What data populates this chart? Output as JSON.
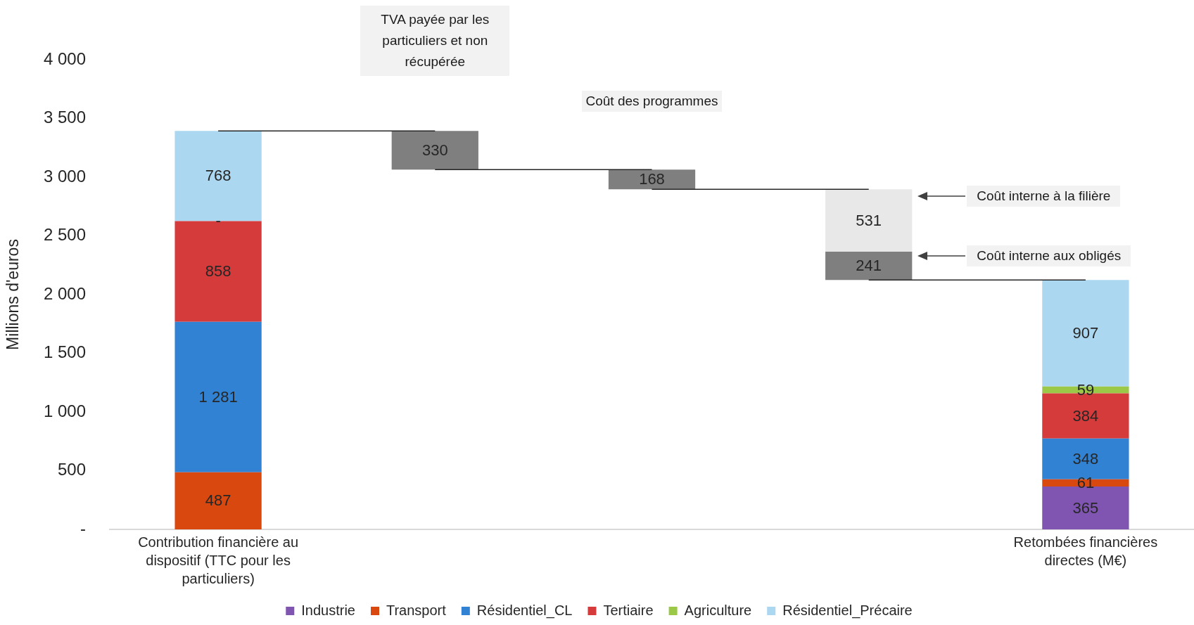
{
  "chart_data": {
    "type": "bar",
    "ylabel": "Millions d'euros",
    "categories": [
      "Contribution financière au dispositif (TTC pour les particuliers)",
      null,
      null,
      null,
      "Retombées financières directes (M€)"
    ],
    "stacked": true,
    "series": [
      {
        "name": "Industrie",
        "color": "#7f55b1",
        "values": [
          null,
          null,
          null,
          null,
          365
        ],
        "value_labels": [
          null,
          null,
          null,
          null,
          "365"
        ]
      },
      {
        "name": "Transport",
        "color": "#d9480f",
        "values": [
          487,
          null,
          null,
          null,
          61
        ],
        "value_labels": [
          "487",
          null,
          null,
          null,
          "61"
        ]
      },
      {
        "name": "Résidentiel_CL",
        "color": "#3282d3",
        "values": [
          1281,
          null,
          null,
          null,
          348
        ],
        "value_labels": [
          "1 281",
          null,
          null,
          null,
          "348"
        ]
      },
      {
        "name": "Tertiaire",
        "color": "#d63b3b",
        "values": [
          858,
          null,
          null,
          null,
          384
        ],
        "value_labels": [
          "858",
          null,
          null,
          null,
          "384"
        ]
      },
      {
        "name": "Agriculture",
        "color": "#9bc846",
        "values": [
          0,
          null,
          null,
          null,
          59
        ],
        "value_labels": [
          null,
          null,
          null,
          null,
          "59"
        ]
      },
      {
        "name": "Résidentiel_Précaire",
        "color": "#acd7f0",
        "values": [
          768,
          null,
          null,
          null,
          907
        ],
        "value_labels": [
          "768",
          null,
          null,
          null,
          "907"
        ]
      },
      {
        "color": "#7f7f7f",
        "base": [
          null,
          3064,
          2896,
          2124,
          null
        ],
        "values": [
          null,
          330,
          168,
          241,
          null
        ],
        "value_labels": [
          null,
          "330",
          "168",
          "241",
          null
        ]
      },
      {
        "color": "#e8e8e8",
        "values": [
          null,
          null,
          null,
          531,
          null
        ],
        "value_labels": [
          null,
          null,
          null,
          "531",
          null
        ]
      },
      {
        "type": "line",
        "color": "#262626",
        "values": [
          3394,
          3394,
          null,
          null,
          null
        ]
      },
      {
        "type": "line",
        "color": "#262626",
        "values": [
          null,
          3064,
          3064,
          null,
          null
        ]
      },
      {
        "type": "line",
        "color": "#262626",
        "values": [
          null,
          null,
          2896,
          2896,
          null
        ]
      },
      {
        "type": "line",
        "color": "#262626",
        "values": [
          null,
          null,
          null,
          2124,
          2124
        ]
      }
    ],
    "marker": "none",
    "ylim": [
      0,
      4000
    ],
    "yticks": [
      {
        "value": 0,
        "label": "-"
      },
      500,
      {
        "value": 1000,
        "label": "1 000"
      },
      {
        "value": 1500,
        "label": "1 500"
      },
      {
        "value": 2000,
        "label": "2 000"
      },
      {
        "value": 2500,
        "label": "2 500"
      },
      {
        "value": 3000,
        "label": "3 000"
      },
      {
        "value": 3500,
        "label": "3 500"
      },
      {
        "value": 4000,
        "label": "4 000"
      }
    ],
    "legend": "bottom",
    "annotations": [
      "TVA payée par les particuliers et non récupérée",
      "Coût des programmes",
      "Coût interne à la filière",
      "Coût interne aux obligés",
      "-"
    ]
  }
}
